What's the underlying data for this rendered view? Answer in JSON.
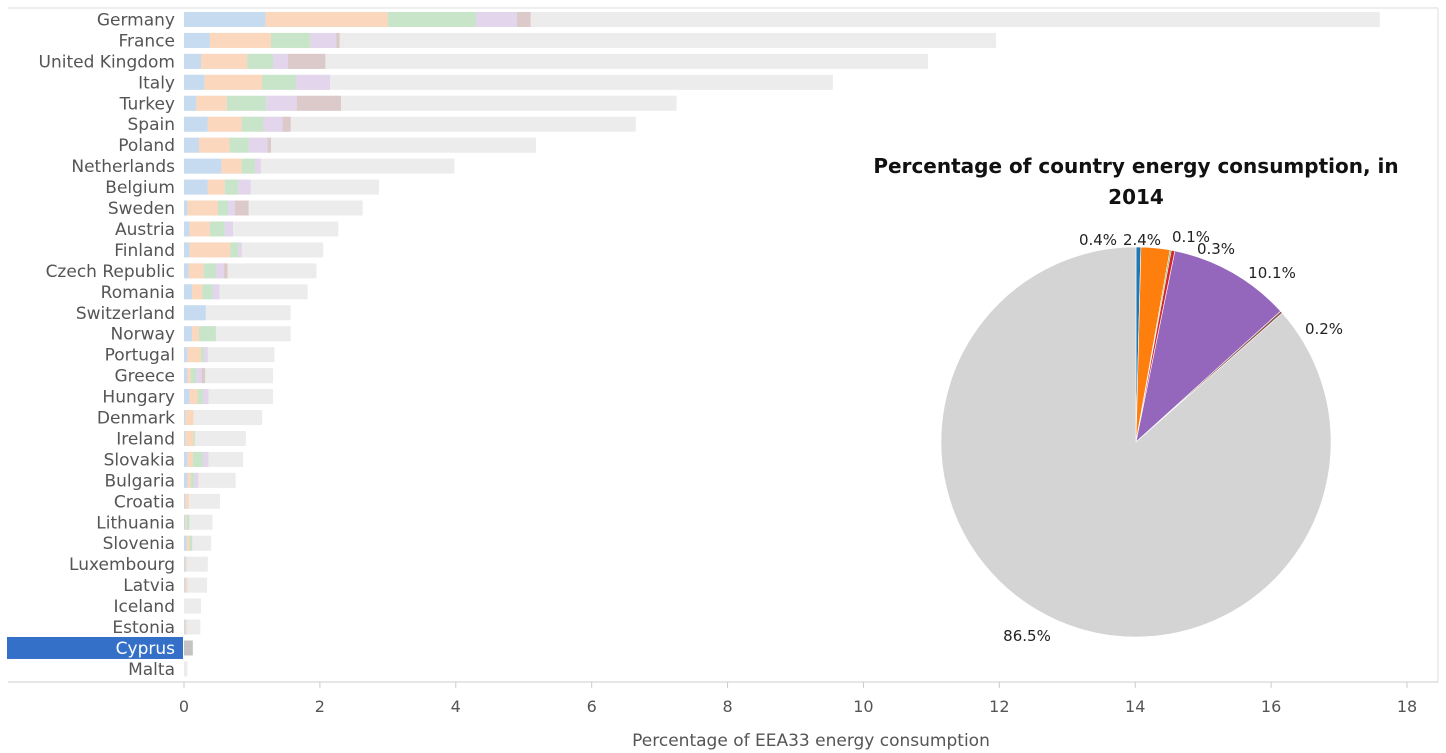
{
  "chart_data": [
    {
      "type": "bar",
      "orientation": "horizontal",
      "stacked": true,
      "xlabel": "Percentage of EEA33 energy consumption",
      "xlim": [
        0,
        18
      ],
      "xticks": [
        0,
        2,
        4,
        6,
        8,
        10,
        12,
        14,
        16,
        18
      ],
      "selected_category": "Cyprus",
      "selected_color": "#3570c8",
      "series": [
        {
          "color": "#c6dbef"
        },
        {
          "color": "#fbd8bd"
        },
        {
          "color": "#c9e5c9"
        },
        {
          "color": "#e2d5ec"
        },
        {
          "color": "#dccaca"
        },
        {
          "color": "#ececec"
        },
        {
          "color": "#bfe6ec"
        }
      ],
      "bars": [
        {
          "country": "Germany",
          "total": 17.6,
          "segments": [
            1.2,
            1.8,
            1.3,
            0.6,
            0.2
          ]
        },
        {
          "country": "France",
          "total": 11.95,
          "segments": [
            0.38,
            0.9,
            0.58,
            0.38,
            0.05
          ]
        },
        {
          "country": "United Kingdom",
          "total": 10.95,
          "segments": [
            0.25,
            0.68,
            0.38,
            0.22,
            0.55
          ]
        },
        {
          "country": "Italy",
          "total": 9.55,
          "segments": [
            0.3,
            0.85,
            0.5,
            0.5
          ]
        },
        {
          "country": "Turkey",
          "total": 7.25,
          "segments": [
            0.18,
            0.45,
            0.58,
            0.45,
            0.65
          ]
        },
        {
          "country": "Spain",
          "total": 6.65,
          "segments": [
            0.35,
            0.5,
            0.32,
            0.28,
            0.12
          ]
        },
        {
          "country": "Poland",
          "total": 5.18,
          "segments": [
            0.22,
            0.45,
            0.28,
            0.28,
            0.05
          ]
        },
        {
          "country": "Netherlands",
          "total": 3.98,
          "segments": [
            0.55,
            0.3,
            0.2,
            0.08
          ]
        },
        {
          "country": "Belgium",
          "total": 2.87,
          "segments": [
            0.35,
            0.25,
            0.2,
            0.18
          ]
        },
        {
          "country": "Sweden",
          "total": 2.63,
          "segments": [
            0.05,
            0.45,
            0.15,
            0.1,
            0.2
          ]
        },
        {
          "country": "Austria",
          "total": 2.27,
          "segments": [
            0.08,
            0.3,
            0.22,
            0.12
          ]
        },
        {
          "country": "Finland",
          "total": 2.05,
          "segments": [
            0.08,
            0.6,
            0.12,
            0.05
          ]
        },
        {
          "country": "Czech Republic",
          "total": 1.95,
          "segments": [
            0.07,
            0.22,
            0.18,
            0.12,
            0.05
          ]
        },
        {
          "country": "Romania",
          "total": 1.82,
          "segments": [
            0.12,
            0.15,
            0.15,
            0.1
          ]
        },
        {
          "country": "Switzerland",
          "total": 1.57,
          "segments": [
            0.32
          ]
        },
        {
          "country": "Norway",
          "total": 1.57,
          "segments": [
            0.12,
            0.1,
            0.25
          ]
        },
        {
          "country": "Portugal",
          "total": 1.33,
          "segments": [
            0.05,
            0.2,
            0.05,
            0.05
          ]
        },
        {
          "country": "Greece",
          "total": 1.31,
          "segments": [
            0.05,
            0.05,
            0.08,
            0.08,
            0.05
          ]
        },
        {
          "country": "Hungary",
          "total": 1.31,
          "segments": [
            0.08,
            0.12,
            0.08,
            0.08
          ]
        },
        {
          "country": "Denmark",
          "total": 1.15,
          "segments": [
            0.02,
            0.12
          ]
        },
        {
          "country": "Ireland",
          "total": 0.91,
          "segments": [
            0.02,
            0.12,
            0.02
          ]
        },
        {
          "country": "Slovakia",
          "total": 0.87,
          "segments": [
            0.05,
            0.08,
            0.15,
            0.08
          ]
        },
        {
          "country": "Bulgaria",
          "total": 0.76,
          "segments": [
            0.05,
            0.05,
            0.05,
            0.06
          ]
        },
        {
          "country": "Croatia",
          "total": 0.53,
          "segments": [
            0.02,
            0.05
          ]
        },
        {
          "country": "Lithuania",
          "total": 0.42,
          "segments": [
            0.02,
            0.02,
            0.04
          ]
        },
        {
          "country": "Slovenia",
          "total": 0.4,
          "segments": [
            0.04,
            0.04,
            0.04
          ]
        },
        {
          "country": "Luxembourg",
          "total": 0.35,
          "segments": [
            0.02,
            0.02
          ]
        },
        {
          "country": "Latvia",
          "total": 0.34,
          "segments": [
            0.02,
            0.03
          ]
        },
        {
          "country": "Iceland",
          "total": 0.25,
          "segments": [
            0,
            0,
            0,
            0,
            0,
            0.1
          ]
        },
        {
          "country": "Estonia",
          "total": 0.24,
          "segments": [
            0.02,
            0.02
          ]
        },
        {
          "country": "Cyprus",
          "total": 0.13,
          "segments": [],
          "fill": "#c4c4c4"
        },
        {
          "country": "Malta",
          "total": 0.05,
          "segments": []
        }
      ]
    },
    {
      "type": "pie",
      "title": "Percentage of country energy consumption, in 2014",
      "slices": [
        {
          "label": "0.4%",
          "value": 0.4,
          "color": "#1f77b4"
        },
        {
          "label": "2.4%",
          "value": 2.4,
          "color": "#ff7f0e"
        },
        {
          "label": "0.1%",
          "value": 0.1,
          "color": "#2ca02c"
        },
        {
          "label": "0.3%",
          "value": 0.3,
          "color": "#d62728"
        },
        {
          "label": "10.1%",
          "value": 10.1,
          "color": "#9467bd"
        },
        {
          "label": "0.2%",
          "value": 0.2,
          "color": "#8c564b"
        },
        {
          "label": "86.5%",
          "value": 86.5,
          "color": "#d4d4d4"
        }
      ]
    }
  ]
}
